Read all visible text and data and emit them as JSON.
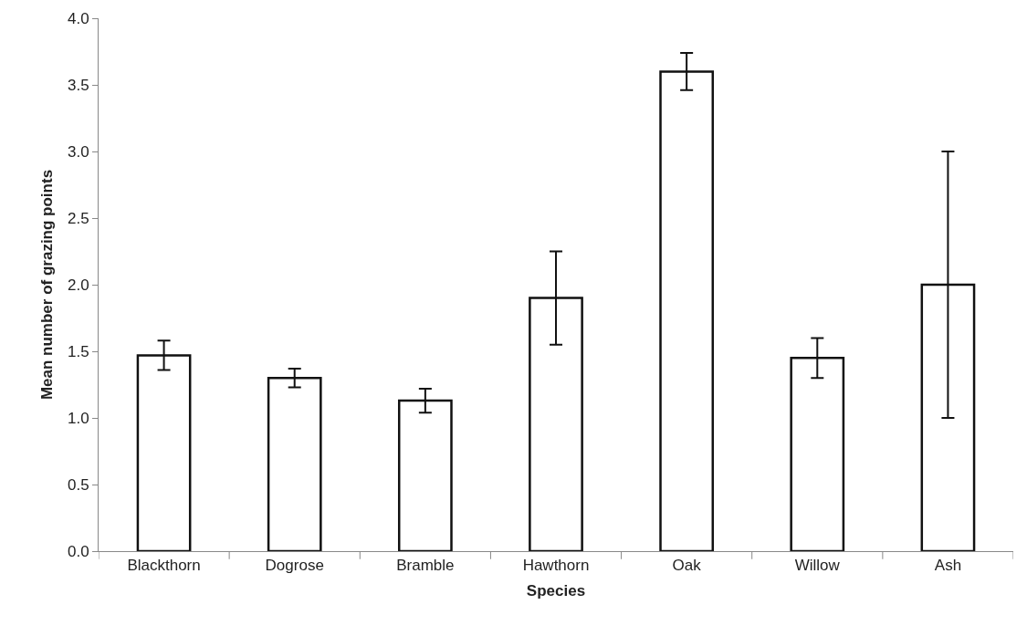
{
  "chart_data": {
    "type": "bar",
    "xlabel": "Species",
    "ylabel": "Mean number of grazing points",
    "categories": [
      "Blackthorn",
      "Dogrose",
      "Bramble",
      "Hawthorn",
      "Oak",
      "Willow",
      "Ash"
    ],
    "values": [
      1.47,
      1.3,
      1.13,
      1.9,
      3.6,
      1.45,
      2.0
    ],
    "errors": [
      0.11,
      0.07,
      0.09,
      0.35,
      0.14,
      0.15,
      1.0
    ],
    "color": "#ffffff",
    "ylim": [
      0,
      4
    ],
    "yticks": [
      {
        "value": 0,
        "label": "0.0"
      },
      {
        "value": 0.5,
        "label": "0.5"
      },
      {
        "value": 1,
        "label": "1.0"
      },
      {
        "value": 1.5,
        "label": "1.5"
      },
      {
        "value": 2,
        "label": "2.0"
      },
      {
        "value": 2.5,
        "label": "2.5"
      },
      {
        "value": 3,
        "label": "3.0"
      },
      {
        "value": 3.5,
        "label": "3.5"
      },
      {
        "value": 4,
        "label": "4.0"
      }
    ],
    "grid": false,
    "legend": false
  }
}
